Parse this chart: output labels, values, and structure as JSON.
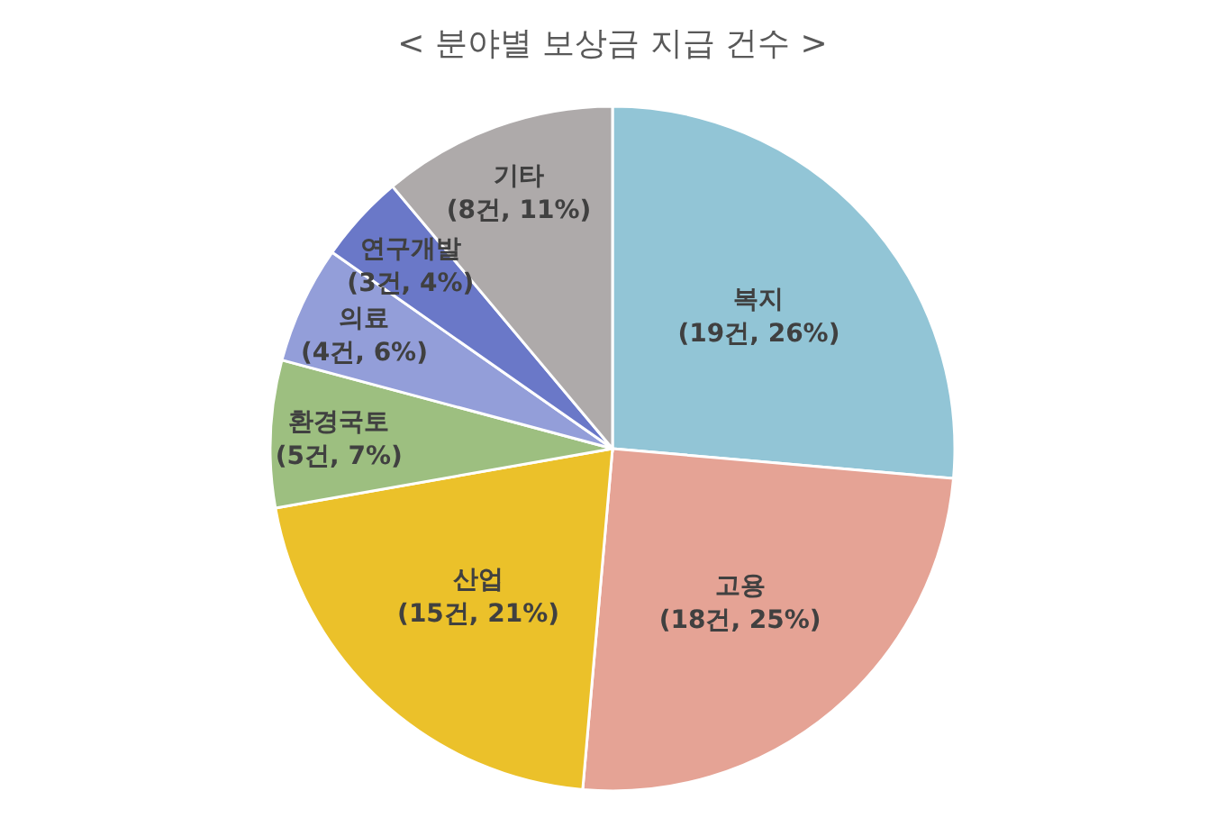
{
  "chart_data": {
    "type": "pie",
    "title": "< 분야별 보상금 지급 건수 >",
    "categories": [
      "복지",
      "고용",
      "산업",
      "환경국토",
      "의료",
      "연구개발",
      "기타"
    ],
    "values": [
      19,
      18,
      15,
      5,
      4,
      3,
      8
    ],
    "value_labels": [
      "(19건, 26%)",
      "(18건, 25%)",
      "(15건, 21%)",
      "(5건, 7%)",
      "(4건, 6%)",
      "(3건, 4%)",
      "(8건, 11%)"
    ],
    "colors": [
      "#92c5d6",
      "#e5a395",
      "#ebc12a",
      "#9dbf80",
      "#939ed9",
      "#6a78c8",
      "#aeaaaa"
    ]
  }
}
